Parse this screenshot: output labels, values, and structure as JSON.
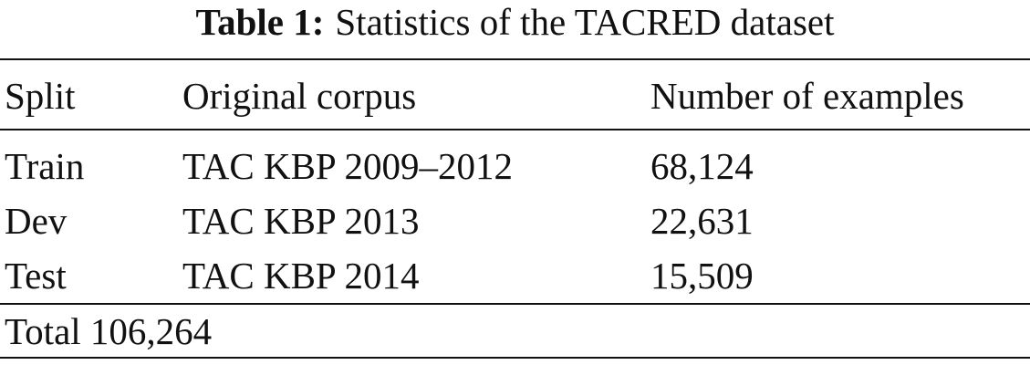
{
  "caption": {
    "label": "Table 1:",
    "text": "Statistics of the TACRED dataset"
  },
  "table": {
    "header": [
      "Split",
      "Original corpus",
      "Number of examples"
    ],
    "rows": [
      [
        "Train",
        "TAC KBP 2009–2012",
        "68,124"
      ],
      [
        "Dev",
        "TAC KBP 2013",
        "22,631"
      ],
      [
        "Test",
        "TAC KBP 2014",
        "15,509"
      ]
    ],
    "footer": {
      "label": "Total",
      "value": "106,264"
    }
  }
}
